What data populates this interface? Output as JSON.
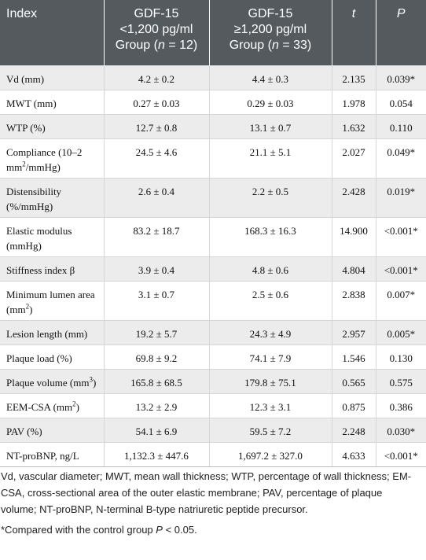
{
  "header": {
    "index": "Index",
    "group1_line1": "GDF-15",
    "group1_line2": "<1,200 pg/ml",
    "group1_line3_pre": "Group (",
    "group1_line3_n": "n",
    "group1_line3_post": " = 12)",
    "group2_line1": "GDF-15",
    "group2_line2": "≥1,200 pg/ml",
    "group2_line3_pre": "Group (",
    "group2_line3_n": "n",
    "group2_line3_post": " = 33)",
    "t": "t",
    "p": "P"
  },
  "rows": [
    {
      "index": "Vd (mm)",
      "g1": "4.2 ± 0.2",
      "g2": "4.4 ± 0.3",
      "t": "2.135",
      "p": "0.039*"
    },
    {
      "index": "MWT (mm)",
      "g1": "0.27 ± 0.03",
      "g2": "0.29 ± 0.03",
      "t": "1.978",
      "p": "0.054"
    },
    {
      "index": "WTP (%)",
      "g1": "12.7 ± 0.8",
      "g2": "13.1 ± 0.7",
      "t": "1.632",
      "p": "0.110"
    },
    {
      "index_pre": "Compliance (10–2 mm",
      "index_sup": "2",
      "index_post": "/mmHg)",
      "g1": "24.5 ± 4.6",
      "g2": "21.1 ± 5.1",
      "t": "2.027",
      "p": "0.049*"
    },
    {
      "index": "Distensibility (%/mmHg)",
      "g1": "2.6 ± 0.4",
      "g2": "2.2 ± 0.5",
      "t": "2.428",
      "p": "0.019*"
    },
    {
      "index": "Elastic modulus (mmHg)",
      "g1": "83.2 ± 18.7",
      "g2": "168.3 ± 16.3",
      "t": "14.900",
      "p": "<0.001*"
    },
    {
      "index": "Stiffness index β",
      "g1": "3.9 ± 0.4",
      "g2": "4.8 ± 0.6",
      "t": "4.804",
      "p": "<0.001*"
    },
    {
      "index_pre": "Minimum lumen area (mm",
      "index_sup": "2",
      "index_post": ")",
      "g1": "3.1 ± 0.7",
      "g2": "2.5 ± 0.6",
      "t": "2.838",
      "p": "0.007*"
    },
    {
      "index": "Lesion length (mm)",
      "g1": "19.2 ± 5.7",
      "g2": "24.3 ± 4.9",
      "t": "2.957",
      "p": "0.005*"
    },
    {
      "index": "Plaque load (%)",
      "g1": "69.8 ± 9.2",
      "g2": "74.1 ± 7.9",
      "t": "1.546",
      "p": "0.130"
    },
    {
      "index_pre": "Plaque volume (mm",
      "index_sup": "3",
      "index_post": ")",
      "g1": "165.8 ± 68.5",
      "g2": "179.8 ± 75.1",
      "t": "0.565",
      "p": "0.575"
    },
    {
      "index_pre": "EEM-CSA (mm",
      "index_sup": "2",
      "index_post": ")",
      "g1": "13.2 ± 2.9",
      "g2": "12.3 ± 3.1",
      "t": "0.875",
      "p": "0.386"
    },
    {
      "index": "PAV (%)",
      "g1": "54.1 ± 6.9",
      "g2": "59.5 ± 7.2",
      "t": "2.248",
      "p": "0.030*"
    },
    {
      "index": "NT-proBNP, ng/L",
      "g1": "1,132.3 ± 447.6",
      "g2": "1,697.2 ± 327.0",
      "t": "4.633",
      "p": "<0.001*"
    }
  ],
  "footnotes": {
    "abbreviations": "Vd, vascular diameter; MWT, mean wall thickness; WTP, percentage of wall thickness; EM-CSA, cross-sectional area of the outer elastic membrane; PAV, percentage of plaque volume; NT-proBNP, N-terminal B-type natriuretic peptide precursor.",
    "note_pre": "*Compared with the control group ",
    "note_p": "P",
    "note_post": " < 0.05."
  },
  "colors": {
    "header_bg": "#555a5e",
    "stripe": "#ececec"
  }
}
